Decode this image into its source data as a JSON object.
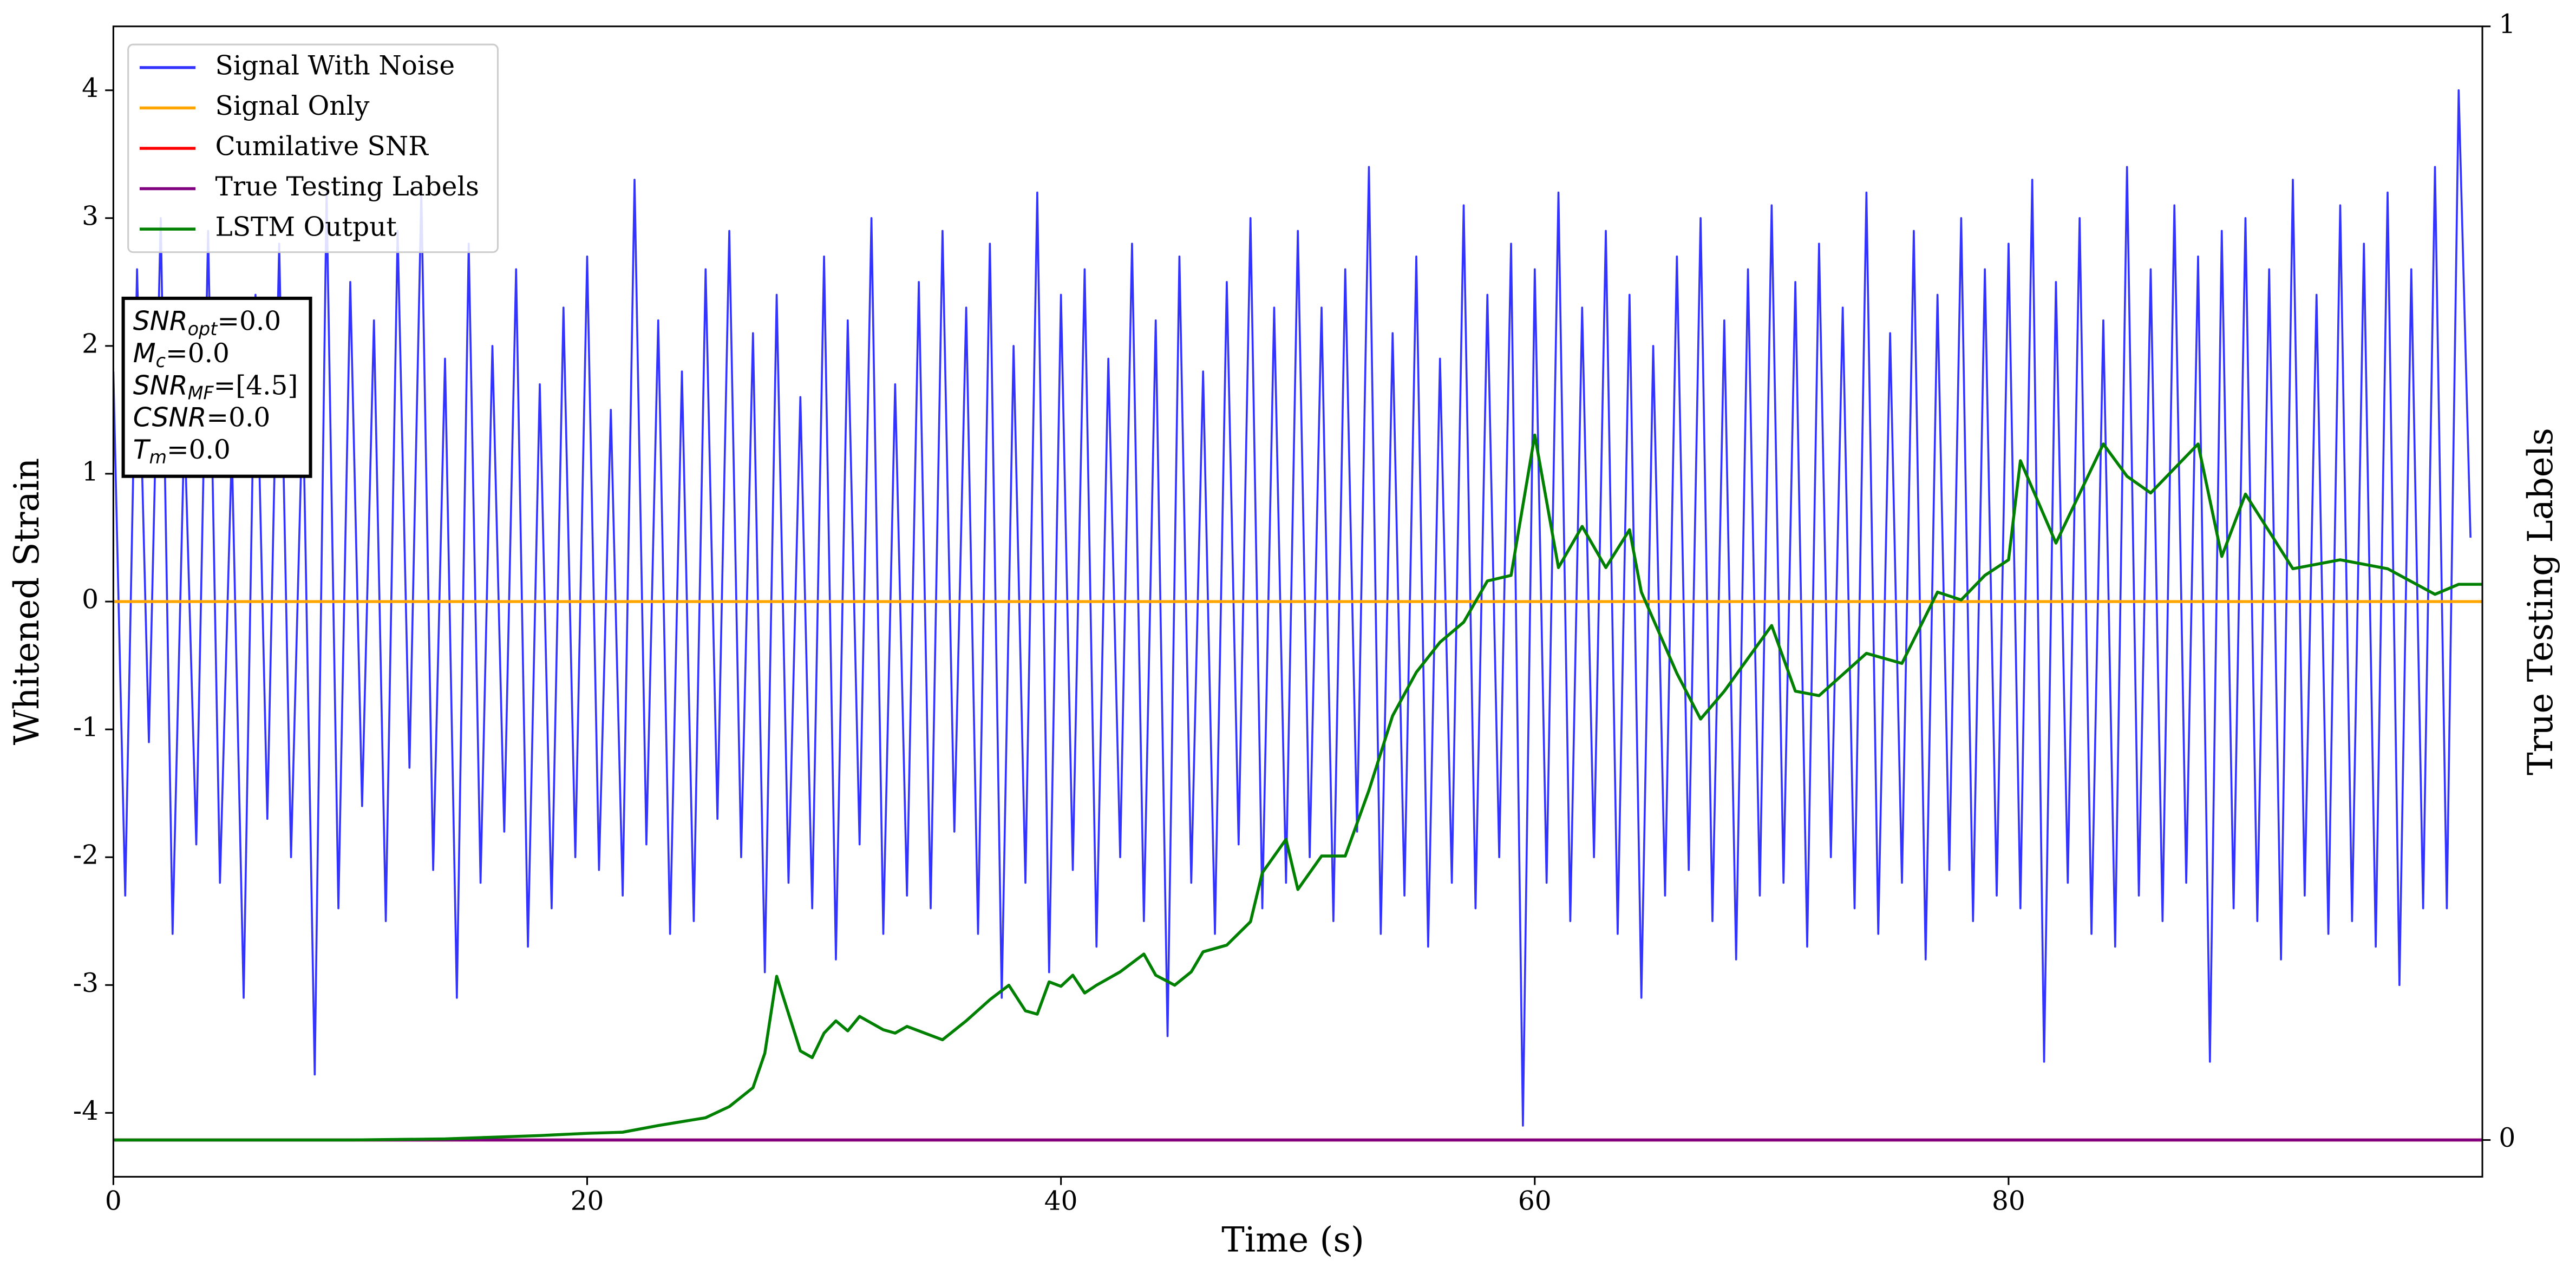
{
  "chart_data": {
    "type": "line",
    "xlabel": "Time (s)",
    "ylabel": "Whitened Strain",
    "y2label": "True Testing Labels",
    "xlim": [
      0,
      100
    ],
    "ylim": [
      -4.5,
      4.5
    ],
    "y2lim": [
      -0.033,
      1.0
    ],
    "xticks": [
      0,
      20,
      40,
      60,
      80
    ],
    "yticks": [
      -4,
      -3,
      -2,
      -1,
      0,
      1,
      2,
      3,
      4
    ],
    "y2ticks": [
      0,
      1
    ],
    "grid": false,
    "legend": "upper left",
    "annotations": [
      {
        "symbol": "SNR",
        "subscript": "opt",
        "text": "=0.0"
      },
      {
        "symbol": "M",
        "subscript": "c",
        "text": "=0.0"
      },
      {
        "symbol": "SNR",
        "subscript": "MF",
        "text": "=[4.5]"
      },
      {
        "symbol": "CSNR",
        "subscript": null,
        "text": "=0.0"
      },
      {
        "symbol": "T",
        "subscript": "m",
        "text": "=0.0"
      }
    ],
    "series": [
      {
        "name": "Signal With Noise",
        "color": "#3333ff",
        "x": [
          0,
          0.5,
          1,
          1.5,
          2,
          2.5,
          3,
          3.5,
          4,
          4.5,
          5,
          5.5,
          6,
          6.5,
          7,
          7.5,
          8,
          8.5,
          9,
          9.5,
          10,
          10.5,
          11,
          11.5,
          12,
          12.5,
          13,
          13.5,
          14,
          14.5,
          15,
          15.5,
          16,
          16.5,
          17,
          17.5,
          18,
          18.5,
          19,
          19.5,
          20,
          20.5,
          21,
          21.5,
          22,
          22.5,
          23,
          23.5,
          24,
          24.5,
          25,
          25.5,
          26,
          26.5,
          27,
          27.5,
          28,
          28.5,
          29,
          29.5,
          30,
          30.5,
          31,
          31.5,
          32,
          32.5,
          33,
          33.5,
          34,
          34.5,
          35,
          35.5,
          36,
          36.5,
          37,
          37.5,
          38,
          38.5,
          39,
          39.5,
          40,
          40.5,
          41,
          41.5,
          42,
          42.5,
          43,
          43.5,
          44,
          44.5,
          45,
          45.5,
          46,
          46.5,
          47,
          47.5,
          48,
          48.5,
          49,
          49.5,
          50,
          50.5,
          51,
          51.5,
          52,
          52.5,
          53,
          53.5,
          54,
          54.5,
          55,
          55.5,
          56,
          56.5,
          57,
          57.5,
          58,
          58.5,
          59,
          59.5,
          60,
          60.5,
          61,
          61.5,
          62,
          62.5,
          63,
          63.5,
          64,
          64.5,
          65,
          65.5,
          66,
          66.5,
          67,
          67.5,
          68,
          68.5,
          69,
          69.5,
          70,
          70.5,
          71,
          71.5,
          72,
          72.5,
          73,
          73.5,
          74,
          74.5,
          75,
          75.5,
          76,
          76.5,
          77,
          77.5,
          78,
          78.5,
          79,
          79.5,
          80,
          80.5,
          81,
          81.5,
          82,
          82.5,
          83,
          83.5,
          84,
          84.5,
          85,
          85.5,
          86,
          86.5,
          87,
          87.5,
          88,
          88.5,
          89,
          89.5,
          90,
          90.5,
          91,
          91.5,
          92,
          92.5,
          93,
          93.5,
          94,
          94.5,
          95,
          95.5,
          96,
          96.5,
          97,
          97.5,
          98,
          98.5,
          99,
          99.5
        ],
        "values": [
          1.8,
          -2.3,
          2.6,
          -1.1,
          3.0,
          -2.6,
          1.4,
          -1.9,
          2.9,
          -2.2,
          1.2,
          -3.1,
          2.4,
          -1.7,
          2.8,
          -2.0,
          1.6,
          -3.7,
          3.2,
          -2.4,
          2.5,
          -1.6,
          2.2,
          -2.5,
          2.9,
          -1.3,
          3.2,
          -2.1,
          1.9,
          -3.1,
          2.8,
          -2.2,
          2.0,
          -1.8,
          2.6,
          -2.7,
          1.7,
          -2.4,
          2.3,
          -2.0,
          2.7,
          -2.1,
          1.5,
          -2.3,
          3.3,
          -1.9,
          2.2,
          -2.6,
          1.8,
          -2.5,
          2.6,
          -1.7,
          2.9,
          -2.0,
          2.1,
          -2.9,
          2.4,
          -2.2,
          1.6,
          -2.4,
          2.7,
          -2.8,
          2.2,
          -1.9,
          3.0,
          -2.6,
          1.7,
          -2.3,
          2.5,
          -2.4,
          2.9,
          -1.8,
          2.3,
          -2.6,
          2.8,
          -3.1,
          2.0,
          -2.2,
          3.2,
          -2.9,
          2.4,
          -2.1,
          2.6,
          -2.7,
          1.9,
          -2.0,
          2.8,
          -2.5,
          2.2,
          -3.4,
          2.7,
          -2.2,
          1.8,
          -2.6,
          2.5,
          -1.9,
          3.0,
          -2.4,
          2.3,
          -2.2,
          2.9,
          -2.0,
          2.3,
          -2.5,
          2.6,
          -1.8,
          3.4,
          -2.6,
          2.1,
          -2.3,
          2.7,
          -2.7,
          1.9,
          -2.2,
          3.1,
          -2.4,
          2.4,
          -2.0,
          2.8,
          -4.1,
          2.6,
          -2.2,
          3.2,
          -2.5,
          2.3,
          -2.0,
          2.9,
          -2.6,
          2.4,
          -3.1,
          2.0,
          -2.3,
          2.7,
          -2.1,
          3.0,
          -2.5,
          2.2,
          -2.8,
          2.6,
          -2.3,
          3.1,
          -2.2,
          2.5,
          -2.7,
          2.8,
          -2.0,
          2.3,
          -2.4,
          3.2,
          -2.6,
          2.1,
          -2.2,
          2.9,
          -2.8,
          2.4,
          -2.1,
          3.0,
          -2.5,
          2.6,
          -2.3,
          2.8,
          -2.4,
          3.3,
          -3.6,
          2.5,
          -2.2,
          3.0,
          -2.6,
          2.2,
          -2.7,
          3.4,
          -2.3,
          2.6,
          -2.5,
          3.1,
          -2.2,
          2.7,
          -3.6,
          2.9,
          -2.4,
          3.0,
          -2.5,
          2.6,
          -2.8,
          3.3,
          -2.3,
          2.4,
          -2.6,
          3.1,
          -2.5,
          2.8,
          -2.7,
          3.2,
          -3.0,
          2.6,
          -2.4,
          3.4,
          -2.4,
          4.0,
          0.5
        ]
      },
      {
        "name": "Signal Only",
        "color": "#ffa500",
        "x": [
          0,
          100
        ],
        "values": [
          0,
          0
        ]
      },
      {
        "name": "Cumilative SNR",
        "color": "#ff0000",
        "axis": "y2",
        "x": [
          0,
          100
        ],
        "values": [
          0,
          0
        ]
      },
      {
        "name": "True Testing Labels",
        "color": "#800080",
        "axis": "y2",
        "x": [
          0,
          100
        ],
        "values": [
          0,
          0
        ]
      },
      {
        "name": "LSTM Output",
        "color": "#008000",
        "axis": "y2",
        "x": [
          0,
          10,
          14,
          18,
          20,
          21.5,
          23,
          25,
          26,
          27,
          27.5,
          28,
          29,
          29.5,
          30,
          30.5,
          31,
          31.5,
          32.5,
          33,
          33.5,
          35,
          36,
          37,
          37.8,
          38.5,
          39,
          39.5,
          40,
          40.5,
          41,
          41.5,
          42.5,
          43.5,
          44,
          44.8,
          45.5,
          46,
          47,
          48,
          48.5,
          49.5,
          50,
          51,
          52,
          53,
          54,
          55,
          56,
          57,
          58,
          59,
          60,
          61,
          62,
          63,
          64,
          64.5,
          66,
          67,
          68,
          70,
          71,
          72,
          74,
          75.5,
          77,
          78,
          79,
          80,
          80.5,
          82,
          84,
          85,
          86,
          88,
          89,
          90,
          92,
          94,
          96,
          98,
          99,
          100
        ],
        "values": [
          0,
          0,
          0.001,
          0.004,
          0.006,
          0.007,
          0.013,
          0.02,
          0.03,
          0.047,
          0.078,
          0.147,
          0.08,
          0.074,
          0.096,
          0.107,
          0.098,
          0.111,
          0.099,
          0.096,
          0.102,
          0.09,
          0.107,
          0.126,
          0.139,
          0.116,
          0.113,
          0.142,
          0.138,
          0.148,
          0.132,
          0.139,
          0.151,
          0.167,
          0.148,
          0.139,
          0.151,
          0.169,
          0.175,
          0.196,
          0.24,
          0.27,
          0.225,
          0.255,
          0.255,
          0.314,
          0.381,
          0.42,
          0.447,
          0.465,
          0.502,
          0.507,
          0.633,
          0.514,
          0.551,
          0.514,
          0.548,
          0.492,
          0.419,
          0.378,
          0.403,
          0.462,
          0.403,
          0.399,
          0.437,
          0.428,
          0.492,
          0.485,
          0.507,
          0.521,
          0.61,
          0.536,
          0.625,
          0.596,
          0.581,
          0.625,
          0.524,
          0.58,
          0.513,
          0.521,
          0.513,
          0.49,
          0.499,
          0.499
        ]
      }
    ]
  }
}
